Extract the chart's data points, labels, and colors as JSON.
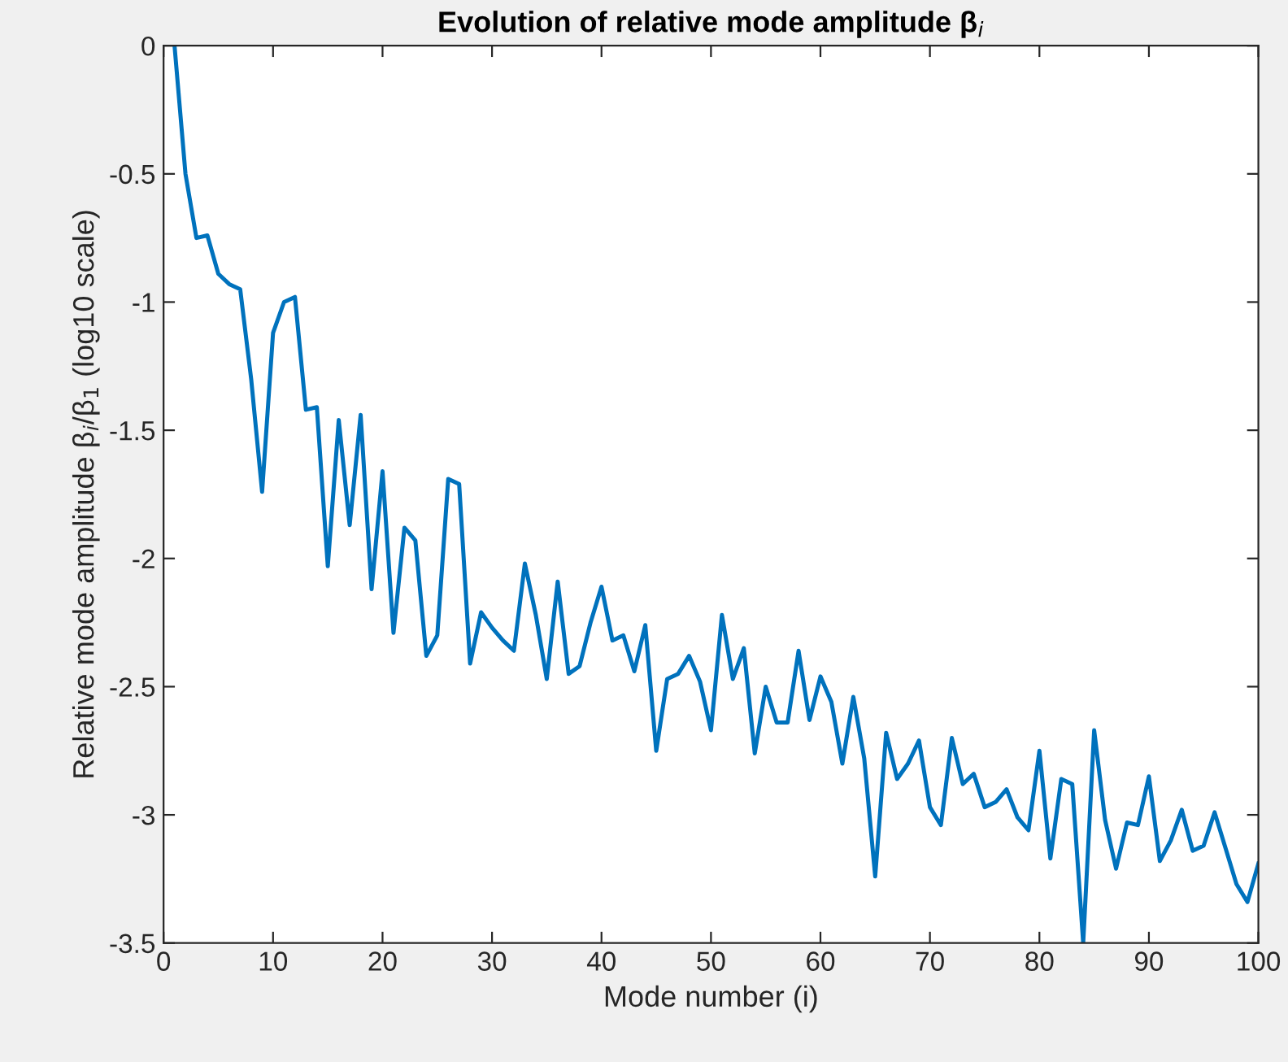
{
  "chart_data": {
    "type": "line",
    "title": "Evolution of relative mode amplitude β$_{i}$",
    "xlabel": "Mode number (i)",
    "ylabel": "Relative mode amplitude β$_{i}$/β$_{1}$ (log10 scale)",
    "x": [
      1,
      2,
      3,
      4,
      5,
      6,
      7,
      8,
      9,
      10,
      11,
      12,
      13,
      14,
      15,
      16,
      17,
      18,
      19,
      20,
      21,
      22,
      23,
      24,
      25,
      26,
      27,
      28,
      29,
      30,
      31,
      32,
      33,
      34,
      35,
      36,
      37,
      38,
      39,
      40,
      41,
      42,
      43,
      44,
      45,
      46,
      47,
      48,
      49,
      50,
      51,
      52,
      53,
      54,
      55,
      56,
      57,
      58,
      59,
      60,
      61,
      62,
      63,
      64,
      65,
      66,
      67,
      68,
      69,
      70,
      71,
      72,
      73,
      74,
      75,
      76,
      77,
      78,
      79,
      80,
      81,
      82,
      83,
      84,
      85,
      86,
      87,
      88,
      89,
      90,
      91,
      92,
      93,
      94,
      95,
      96,
      97,
      98,
      99,
      100
    ],
    "series": [
      {
        "color": "#0072bd",
        "values": [
          0,
          -0.5,
          -0.75,
          -0.74,
          -0.89,
          -0.93,
          -0.95,
          -1.3,
          -1.74,
          -1.12,
          -1.0,
          -0.98,
          -1.42,
          -1.41,
          -2.03,
          -1.46,
          -1.87,
          -1.44,
          -2.12,
          -1.66,
          -2.29,
          -1.88,
          -1.93,
          -2.38,
          -2.3,
          -1.69,
          -1.71,
          -2.41,
          -2.21,
          -2.27,
          -2.32,
          -2.36,
          -2.02,
          -2.22,
          -2.47,
          -2.09,
          -2.45,
          -2.42,
          -2.25,
          -2.11,
          -2.32,
          -2.3,
          -2.44,
          -2.26,
          -2.75,
          -2.47,
          -2.45,
          -2.38,
          -2.48,
          -2.67,
          -2.22,
          -2.47,
          -2.35,
          -2.76,
          -2.5,
          -2.64,
          -2.64,
          -2.36,
          -2.63,
          -2.46,
          -2.56,
          -2.8,
          -2.54,
          -2.78,
          -3.24,
          -2.68,
          -2.86,
          -2.8,
          -2.71,
          -2.97,
          -3.04,
          -2.7,
          -2.88,
          -2.84,
          -2.97,
          -2.95,
          -2.9,
          -3.01,
          -3.06,
          -2.75,
          -3.17,
          -2.86,
          -2.88,
          -3.5,
          -2.67,
          -3.02,
          -3.21,
          -3.03,
          -3.04,
          -2.85,
          -3.18,
          -3.1,
          -2.98,
          -3.14,
          -3.12,
          -2.99,
          -3.13,
          -3.27,
          -3.34,
          -3.19
        ]
      }
    ],
    "xlim": [
      0,
      100
    ],
    "xticks": [
      0,
      10,
      20,
      30,
      40,
      50,
      60,
      70,
      80,
      90,
      100
    ],
    "ylim": [
      -3.5,
      0
    ],
    "yticks": [
      {
        "value": -3.5,
        "label": "-3.5"
      },
      {
        "value": -3,
        "label": "-3"
      },
      {
        "value": -2.5,
        "label": "-2.5"
      },
      {
        "value": -2,
        "label": "-2"
      },
      {
        "value": -1.5,
        "label": "-1.5"
      },
      {
        "value": -1,
        "label": "-1"
      },
      {
        "value": -0.5,
        "label": "-0.5"
      },
      0
    ],
    "grid": false,
    "marker": "none",
    "line_style": "solid"
  }
}
